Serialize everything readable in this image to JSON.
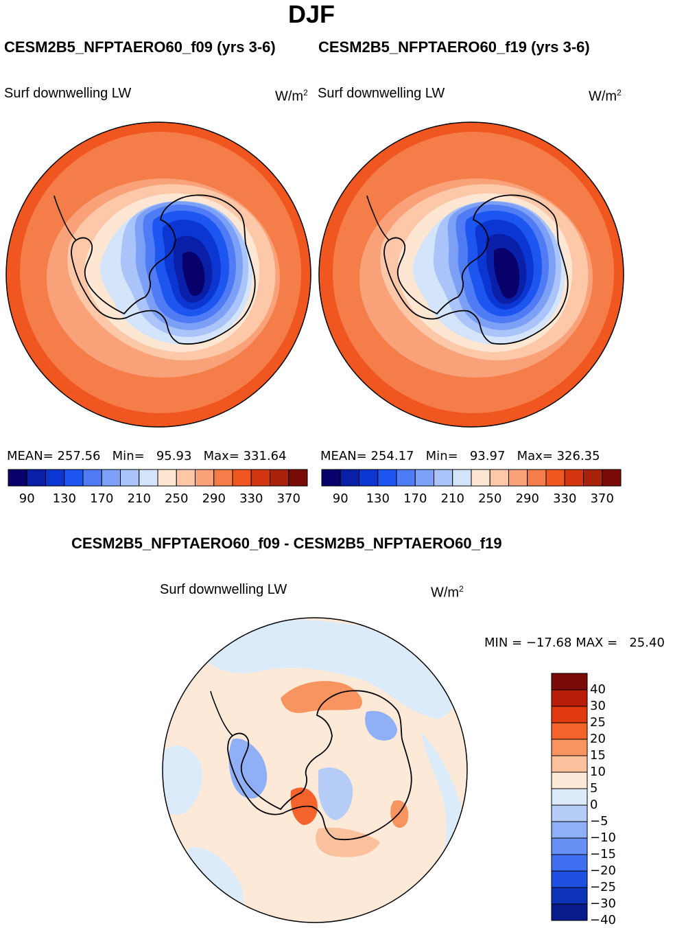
{
  "header": {
    "season": "DJF"
  },
  "panels": [
    {
      "title": "CESM2B5_NFPTAERO60_f09 (yrs 3-6)",
      "field_label": "Surf downwelling LW",
      "units": "W/m",
      "units_sup": "2",
      "mean_label": "MEAN=",
      "mean": "257.56",
      "min_label": "Min=",
      "min": "95.93",
      "max_label": "Max=",
      "max": "331.64"
    },
    {
      "title": "CESM2B5_NFPTAERO60_f19 (yrs 3-6)",
      "field_label": "Surf downwelling LW",
      "units": "W/m",
      "units_sup": "2",
      "mean_label": "MEAN=",
      "mean": "254.17",
      "min_label": "Min=",
      "min": "93.97",
      "max_label": "Max=",
      "max": "326.35"
    }
  ],
  "abs_colorbar": {
    "colors": [
      "#08006b",
      "#0a1fa8",
      "#0b36d1",
      "#1d55f0",
      "#4f7cf5",
      "#7da0f7",
      "#aac3f8",
      "#d4e4fb",
      "#fde6d2",
      "#fcc8a8",
      "#f9a27a",
      "#f57d4a",
      "#f05620",
      "#d53612",
      "#a8220b",
      "#7a0a05"
    ],
    "tick_labels": [
      "90",
      "130",
      "170",
      "210",
      "250",
      "290",
      "330",
      "370"
    ]
  },
  "diff_panel": {
    "title": "CESM2B5_NFPTAERO60_f09 - CESM2B5_NFPTAERO60_f19",
    "field_label": "Surf downwelling LW",
    "units": "W/m",
    "units_sup": "2",
    "min_label": "MIN =",
    "min": "−17.68",
    "max_label": "MAX =",
    "max": "25.40"
  },
  "diff_colorbar": {
    "colors": [
      "#7a0a05",
      "#b81c0a",
      "#e23a10",
      "#f5632c",
      "#f8945f",
      "#fbc19c",
      "#fde9d8",
      "#dcebfa",
      "#b6cdf8",
      "#8fb0f6",
      "#6690f4",
      "#3f6ef0",
      "#1f4fe0",
      "#0d33b8",
      "#081b8a"
    ],
    "tick_labels": [
      "40",
      "30",
      "25",
      "20",
      "15",
      "10",
      "5",
      "0",
      "−5",
      "−10",
      "−15",
      "−20",
      "−25",
      "−30",
      "−40"
    ]
  },
  "chart_data": [
    {
      "type": "heatmap",
      "title": "CESM2B5_NFPTAERO60_f09 (yrs 3-6)",
      "variable": "Surf downwelling LW",
      "units": "W/m2",
      "projection": "south polar stereographic",
      "mean": 257.56,
      "min": 95.93,
      "max": 331.64,
      "contour_levels": [
        90,
        110,
        130,
        150,
        170,
        190,
        210,
        230,
        250,
        270,
        290,
        310,
        330,
        350,
        370
      ]
    },
    {
      "type": "heatmap",
      "title": "CESM2B5_NFPTAERO60_f19 (yrs 3-6)",
      "variable": "Surf downwelling LW",
      "units": "W/m2",
      "projection": "south polar stereographic",
      "mean": 254.17,
      "min": 93.97,
      "max": 326.35,
      "contour_levels": [
        90,
        110,
        130,
        150,
        170,
        190,
        210,
        230,
        250,
        270,
        290,
        310,
        330,
        350,
        370
      ]
    },
    {
      "type": "heatmap",
      "title": "CESM2B5_NFPTAERO60_f09 - CESM2B5_NFPTAERO60_f19",
      "variable": "Surf downwelling LW",
      "units": "W/m2",
      "projection": "south polar stereographic",
      "min": -17.68,
      "max": 25.4,
      "contour_levels": [
        -40,
        -30,
        -25,
        -20,
        -15,
        -10,
        -5,
        0,
        5,
        10,
        15,
        20,
        25,
        30,
        40
      ]
    }
  ]
}
